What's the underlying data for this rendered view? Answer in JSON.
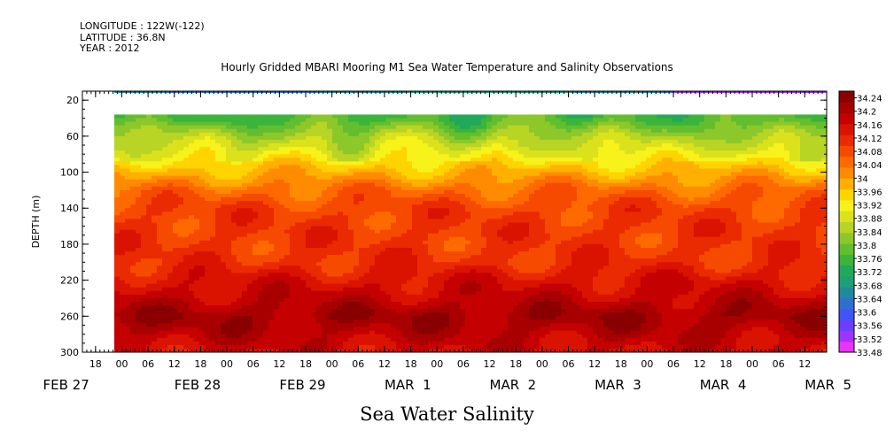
{
  "header": {
    "longitude": "LONGITUDE : 122W(-122)",
    "latitude": "LATITUDE : 36.8N",
    "year": "YEAR : 2012",
    "title": "Hourly Gridded MBARI Mooring M1 Sea Water Temperature and Salinity Observations"
  },
  "chart_data": {
    "type": "heatmap",
    "title": "Hourly Gridded MBARI Mooring M1 Sea Water Temperature and Salinity Observations",
    "xlabel": "Sea Water Salinity",
    "ylabel": "DEPTH (m)",
    "y_ticks": [
      20,
      60,
      100,
      140,
      180,
      220,
      260,
      300
    ],
    "ylim": [
      300,
      10
    ],
    "x_start_hour": "FEB 27 15",
    "x_end_hour": "MAR 5 14",
    "hour_ticks": [
      "18",
      "00",
      "06",
      "12",
      "18",
      "00",
      "06",
      "12",
      "18",
      "00",
      "06",
      "12",
      "18",
      "00",
      "06",
      "12",
      "18",
      "00",
      "06",
      "12",
      "18",
      "00",
      "06",
      "12",
      "18",
      "00",
      "06",
      "12"
    ],
    "day_labels": [
      "FEB 27",
      "FEB 28",
      "FEB 29",
      "MAR  1",
      "MAR  2",
      "MAR  3",
      "MAR  4",
      "MAR  5"
    ],
    "colorbar": {
      "labels": [
        "34.24",
        "34.2",
        "34.16",
        "34.12",
        "34.08",
        "34.04",
        "34",
        "33.96",
        "33.92",
        "33.88",
        "33.84",
        "33.8",
        "33.76",
        "33.72",
        "33.68",
        "33.64",
        "33.6",
        "33.56",
        "33.52",
        "33.48"
      ],
      "min": 33.48,
      "max": 34.26
    },
    "data_coverage": {
      "surface_band_depth_m": [
        10,
        12
      ],
      "no_data_depth_m": [
        12,
        36
      ],
      "profile_depth_m": [
        36,
        300
      ],
      "data_start": "FEB 27 18"
    },
    "depth_profile": [
      {
        "depth": 40,
        "salinity": 33.78
      },
      {
        "depth": 60,
        "salinity": 33.86
      },
      {
        "depth": 80,
        "salinity": 33.92
      },
      {
        "depth": 100,
        "salinity": 33.98
      },
      {
        "depth": 120,
        "salinity": 34.05
      },
      {
        "depth": 140,
        "salinity": 34.09
      },
      {
        "depth": 160,
        "salinity": 34.1
      },
      {
        "depth": 180,
        "salinity": 34.1
      },
      {
        "depth": 200,
        "salinity": 34.11
      },
      {
        "depth": 220,
        "salinity": 34.15
      },
      {
        "depth": 240,
        "salinity": 34.18
      },
      {
        "depth": 260,
        "salinity": 34.22
      },
      {
        "depth": 280,
        "salinity": 34.19
      },
      {
        "depth": 300,
        "salinity": 34.16
      }
    ],
    "surface_salinity_range": [
      33.52,
      33.66
    ]
  }
}
